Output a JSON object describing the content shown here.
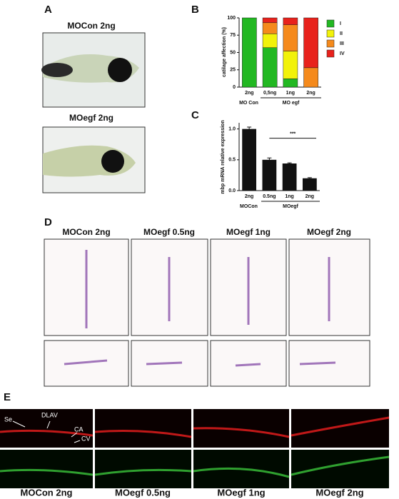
{
  "chart_data": [
    {
      "type": "stacked_bar",
      "panel_letter": "B",
      "ylabel": "catilage affection (%)",
      "categories": [
        "2ng",
        "0,5ng",
        "1ng",
        "2ng"
      ],
      "groups": [
        "MO Con",
        "MO egf"
      ],
      "series": [
        {
          "name": "I",
          "color": "#22b822",
          "values": [
            100,
            57,
            12,
            0
          ]
        },
        {
          "name": "II",
          "color": "#f2f20a",
          "values": [
            0,
            20,
            40,
            0
          ]
        },
        {
          "name": "III",
          "color": "#f58a1c",
          "values": [
            0,
            16,
            38,
            28
          ]
        },
        {
          "name": "IV",
          "color": "#e8221c",
          "values": [
            0,
            7,
            10,
            72
          ]
        }
      ],
      "ylim": [
        0,
        100
      ],
      "yticks": [
        0,
        25,
        50,
        75,
        100
      ]
    },
    {
      "type": "bar",
      "panel_letter": "C",
      "ylabel": "mbp mRNA relative expression",
      "categories": [
        "2ng",
        "0.5ng",
        "1ng",
        "2ng"
      ],
      "groups": [
        "MOCon",
        "MOegf"
      ],
      "values": [
        1.0,
        0.5,
        0.44,
        0.2
      ],
      "errors": [
        0.03,
        0.03,
        0.01,
        0.01
      ],
      "color": "#111111",
      "annotation": "***",
      "ylim": [
        0,
        1.1
      ],
      "yticks": [
        {
          "value": 0,
          "label": "0.0"
        },
        {
          "value": 0.5,
          "label": "0.5"
        },
        {
          "value": 1,
          "label": "1.0"
        }
      ]
    }
  ],
  "panel_a": {
    "letter": "A",
    "labels": [
      "MOCon 2ng",
      "MOegf 2ng"
    ]
  },
  "panel_d": {
    "letter": "D",
    "labels": [
      "MOCon 2ng",
      "MOegf 0.5ng",
      "MOegf 1ng",
      "MOegf 2ng"
    ]
  },
  "panel_e": {
    "letter": "E",
    "labels": [
      "MOCon 2ng",
      "MOegf 0.5ng",
      "MOegf 1ng",
      "MOegf 2ng"
    ],
    "annotations": [
      "Se",
      "DLAV",
      "CA",
      "CV"
    ]
  }
}
